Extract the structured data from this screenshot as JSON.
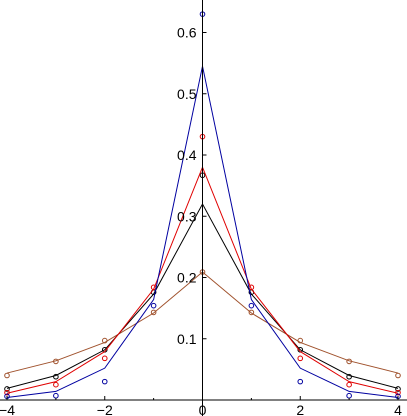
{
  "chart_data": {
    "type": "line",
    "title": "",
    "xlabel": "",
    "ylabel": "",
    "xlim": [
      -4,
      4
    ],
    "ylim": [
      0,
      0.64
    ],
    "grid": false,
    "x_ticks": [
      {
        "value": -4,
        "label": "−4"
      },
      {
        "value": -2,
        "label": "−2"
      },
      {
        "value": 0,
        "label": "0"
      },
      {
        "value": 2,
        "label": "2"
      },
      {
        "value": 4,
        "label": "4"
      }
    ],
    "y_ticks": [
      {
        "value": 0.1,
        "label": "0.1"
      },
      {
        "value": 0.2,
        "label": "0.2"
      },
      {
        "value": 0.3,
        "label": "0.3"
      },
      {
        "value": 0.4,
        "label": "0.4"
      },
      {
        "value": 0.5,
        "label": "0.5"
      },
      {
        "value": 0.6,
        "label": "0.6"
      }
    ],
    "series": [
      {
        "color": "#a0522d",
        "line": {
          "x": [
            -4,
            -3,
            -2,
            -1,
            0,
            1,
            2,
            3,
            4
          ],
          "y": [
            0.044,
            0.064,
            0.094,
            0.142,
            0.209,
            0.142,
            0.094,
            0.064,
            0.044
          ]
        },
        "points": {
          "x": [
            -4,
            -3,
            -2,
            -1,
            0,
            1,
            2,
            3,
            4
          ],
          "y": [
            0.04,
            0.063,
            0.097,
            0.143,
            0.209,
            0.143,
            0.097,
            0.063,
            0.04
          ]
        }
      },
      {
        "color": "#000000",
        "line": {
          "x": [
            -4,
            -3,
            -2,
            -1,
            0,
            1,
            2,
            3,
            4
          ],
          "y": [
            0.019,
            0.04,
            0.082,
            0.173,
            0.32,
            0.173,
            0.082,
            0.04,
            0.019
          ]
        },
        "points": {
          "x": [
            -4,
            -3,
            -2,
            -1,
            0,
            1,
            2,
            3,
            4
          ],
          "y": [
            0.018,
            0.038,
            0.082,
            0.176,
            0.367,
            0.176,
            0.082,
            0.038,
            0.018
          ]
        }
      },
      {
        "color": "#e00000",
        "line": {
          "x": [
            -4,
            -3,
            -2,
            -1,
            0,
            1,
            2,
            3,
            4
          ],
          "y": [
            0.011,
            0.03,
            0.079,
            0.181,
            0.38,
            0.181,
            0.079,
            0.03,
            0.011
          ]
        },
        "points": {
          "x": [
            -4,
            -3,
            -2,
            -1,
            0,
            1,
            2,
            3,
            4
          ],
          "y": [
            0.012,
            0.025,
            0.068,
            0.184,
            0.43,
            0.184,
            0.068,
            0.025,
            0.012
          ]
        }
      },
      {
        "color": "#0000a0",
        "line": {
          "x": [
            -4,
            -3,
            -2,
            -1,
            0,
            1,
            2,
            3,
            4
          ],
          "y": [
            0.004,
            0.014,
            0.052,
            0.164,
            0.545,
            0.164,
            0.052,
            0.014,
            0.004
          ]
        },
        "points": {
          "x": [
            -4,
            -3,
            -2,
            -1,
            0,
            1,
            2,
            3,
            4
          ],
          "y": [
            0.006,
            0.007,
            0.03,
            0.154,
            0.63,
            0.154,
            0.03,
            0.007,
            0.006
          ]
        }
      }
    ]
  }
}
